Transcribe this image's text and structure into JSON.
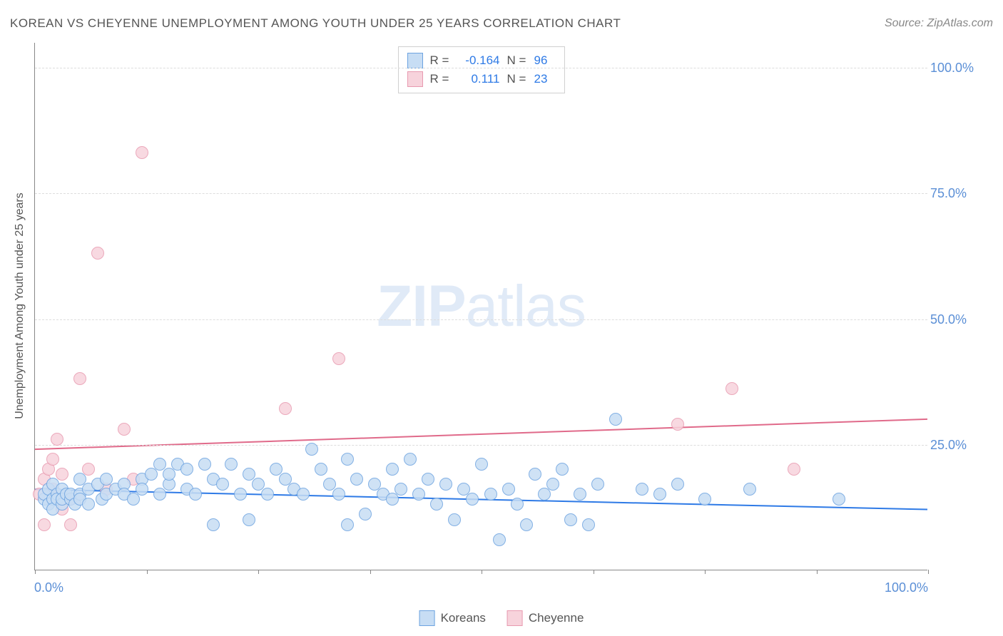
{
  "title": "KOREAN VS CHEYENNE UNEMPLOYMENT AMONG YOUTH UNDER 25 YEARS CORRELATION CHART",
  "source": "Source: ZipAtlas.com",
  "y_axis_label": "Unemployment Among Youth under 25 years",
  "watermark_bold": "ZIP",
  "watermark_light": "atlas",
  "chart": {
    "type": "scatter",
    "xlim": [
      0,
      100
    ],
    "ylim": [
      0,
      105
    ],
    "x_ticks": [
      0,
      12.5,
      25,
      37.5,
      50,
      62.5,
      75,
      87.5,
      100
    ],
    "x_tick_labels": {
      "0": "0.0%",
      "100": "100.0%"
    },
    "y_gridlines": [
      25,
      50,
      75,
      100
    ],
    "y_tick_labels": {
      "25": "25.0%",
      "50": "50.0%",
      "75": "75.0%",
      "100": "100.0%"
    },
    "background_color": "#ffffff",
    "grid_color": "#dddddd",
    "axis_color": "#888888",
    "label_color": "#5b8fd6",
    "marker_radius": 9,
    "marker_stroke_width": 1.5
  },
  "series": [
    {
      "name": "Koreans",
      "fill": "#c7ddf4",
      "stroke": "#6da3e0",
      "R": "-0.164",
      "N": "96",
      "trend": {
        "y_at_x0": 16.0,
        "y_at_x100": 12.0,
        "color": "#2e7ae6",
        "width": 2
      },
      "points": [
        [
          1,
          14
        ],
        [
          1,
          15
        ],
        [
          1.5,
          13
        ],
        [
          1.5,
          16
        ],
        [
          2,
          14
        ],
        [
          2,
          12
        ],
        [
          2,
          17
        ],
        [
          2.5,
          15
        ],
        [
          2.5,
          14
        ],
        [
          3,
          16
        ],
        [
          3,
          13
        ],
        [
          3,
          14
        ],
        [
          3.5,
          15
        ],
        [
          4,
          14
        ],
        [
          4,
          15
        ],
        [
          4.5,
          13
        ],
        [
          5,
          18
        ],
        [
          5,
          15
        ],
        [
          5,
          14
        ],
        [
          6,
          16
        ],
        [
          6,
          13
        ],
        [
          7,
          17
        ],
        [
          7.5,
          14
        ],
        [
          8,
          18
        ],
        [
          8,
          15
        ],
        [
          9,
          16
        ],
        [
          10,
          17
        ],
        [
          10,
          15
        ],
        [
          11,
          14
        ],
        [
          12,
          18
        ],
        [
          12,
          16
        ],
        [
          13,
          19
        ],
        [
          14,
          21
        ],
        [
          14,
          15
        ],
        [
          15,
          17
        ],
        [
          15,
          19
        ],
        [
          16,
          21
        ],
        [
          17,
          16
        ],
        [
          17,
          20
        ],
        [
          18,
          15
        ],
        [
          19,
          21
        ],
        [
          20,
          9
        ],
        [
          20,
          18
        ],
        [
          21,
          17
        ],
        [
          22,
          21
        ],
        [
          23,
          15
        ],
        [
          24,
          10
        ],
        [
          24,
          19
        ],
        [
          25,
          17
        ],
        [
          26,
          15
        ],
        [
          27,
          20
        ],
        [
          28,
          18
        ],
        [
          29,
          16
        ],
        [
          30,
          15
        ],
        [
          31,
          24
        ],
        [
          32,
          20
        ],
        [
          33,
          17
        ],
        [
          34,
          15
        ],
        [
          35,
          9
        ],
        [
          35,
          22
        ],
        [
          36,
          18
        ],
        [
          37,
          11
        ],
        [
          38,
          17
        ],
        [
          39,
          15
        ],
        [
          40,
          20
        ],
        [
          40,
          14
        ],
        [
          41,
          16
        ],
        [
          42,
          22
        ],
        [
          43,
          15
        ],
        [
          44,
          18
        ],
        [
          45,
          13
        ],
        [
          46,
          17
        ],
        [
          47,
          10
        ],
        [
          48,
          16
        ],
        [
          49,
          14
        ],
        [
          50,
          21
        ],
        [
          51,
          15
        ],
        [
          52,
          6
        ],
        [
          53,
          16
        ],
        [
          54,
          13
        ],
        [
          55,
          9
        ],
        [
          56,
          19
        ],
        [
          57,
          15
        ],
        [
          58,
          17
        ],
        [
          59,
          20
        ],
        [
          60,
          10
        ],
        [
          61,
          15
        ],
        [
          62,
          9
        ],
        [
          63,
          17
        ],
        [
          65,
          30
        ],
        [
          68,
          16
        ],
        [
          70,
          15
        ],
        [
          72,
          17
        ],
        [
          75,
          14
        ],
        [
          80,
          16
        ],
        [
          90,
          14
        ]
      ]
    },
    {
      "name": "Cheyenne",
      "fill": "#f7d3dc",
      "stroke": "#e89ab0",
      "R": "0.111",
      "N": "23",
      "trend": {
        "y_at_x0": 24.0,
        "y_at_x100": 30.0,
        "color": "#e06a8a",
        "width": 2
      },
      "points": [
        [
          0.5,
          15
        ],
        [
          1,
          18
        ],
        [
          1,
          9
        ],
        [
          1.5,
          20
        ],
        [
          2,
          22
        ],
        [
          2,
          16
        ],
        [
          2.5,
          26
        ],
        [
          3,
          12
        ],
        [
          3,
          19
        ],
        [
          4,
          14
        ],
        [
          4,
          9
        ],
        [
          5,
          38
        ],
        [
          6,
          20
        ],
        [
          7,
          63
        ],
        [
          8,
          16
        ],
        [
          10,
          28
        ],
        [
          11,
          18
        ],
        [
          12,
          83
        ],
        [
          28,
          32
        ],
        [
          34,
          42
        ],
        [
          72,
          29
        ],
        [
          78,
          36
        ],
        [
          85,
          20
        ]
      ]
    }
  ],
  "stats_labels": {
    "R": "R =",
    "N": "N ="
  },
  "legend": {
    "series1_label": "Koreans",
    "series2_label": "Cheyenne"
  }
}
